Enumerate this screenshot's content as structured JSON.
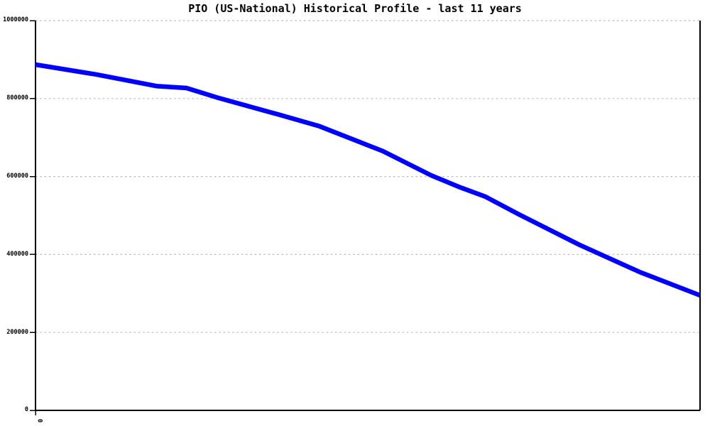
{
  "style": {
    "background": "#ffffff",
    "line_color": "#0000ff",
    "grid_color": "#b8b8b8",
    "axis_color": "#000000",
    "text_color": "#000000"
  },
  "chart_data": {
    "type": "line",
    "title": "PIO (US-National) Historical Profile - last 11 years",
    "xlabel": "",
    "ylabel": "",
    "xlim": [
      0,
      11
    ],
    "ylim": [
      0,
      1000000
    ],
    "grid": "horizontal dotted",
    "legend": "none",
    "y_ticks": [
      {
        "value": 1000000,
        "label": "1000000"
      },
      {
        "value": 800000,
        "label": "800000"
      },
      {
        "value": 600000,
        "label": "600000"
      },
      {
        "value": 400000,
        "label": "400000"
      },
      {
        "value": 200000,
        "label": "200000"
      },
      {
        "value": 0,
        "label": "0"
      }
    ],
    "x_ticks": [
      {
        "value": 0,
        "label": "0"
      }
    ],
    "series": [
      {
        "name": "PIO (US-National)",
        "color": "#0000ff",
        "x": [
          0,
          1,
          2,
          2.5,
          3,
          4,
          4.7,
          5.75,
          6.55,
          7,
          7.45,
          8,
          9,
          10,
          11
        ],
        "values": [
          887000,
          862000,
          832000,
          827000,
          803000,
          760000,
          729000,
          665000,
          603000,
          574000,
          548000,
          503000,
          425000,
          355000,
          295000
        ]
      }
    ]
  }
}
